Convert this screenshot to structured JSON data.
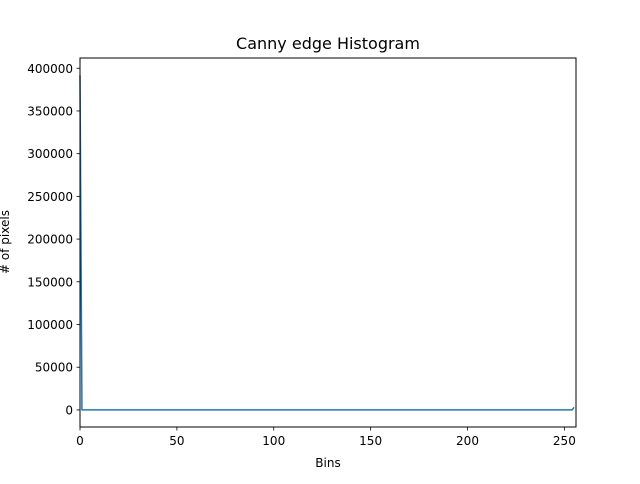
{
  "chart_data": {
    "type": "line",
    "title": "Canny edge Histogram",
    "xlabel": "Bins",
    "ylabel": "# of pixels",
    "xlim": [
      0,
      256
    ],
    "ylim": [
      -20000,
      412000
    ],
    "xticks": [
      0,
      50,
      100,
      150,
      200,
      250
    ],
    "yticks": [
      0,
      50000,
      100000,
      150000,
      200000,
      250000,
      300000,
      350000,
      400000
    ],
    "grid": false,
    "series": [
      {
        "color": "#1f77b4",
        "x": [
          0,
          1,
          2,
          254,
          255
        ],
        "y": [
          392000,
          0,
          0,
          0,
          3000
        ]
      }
    ]
  }
}
